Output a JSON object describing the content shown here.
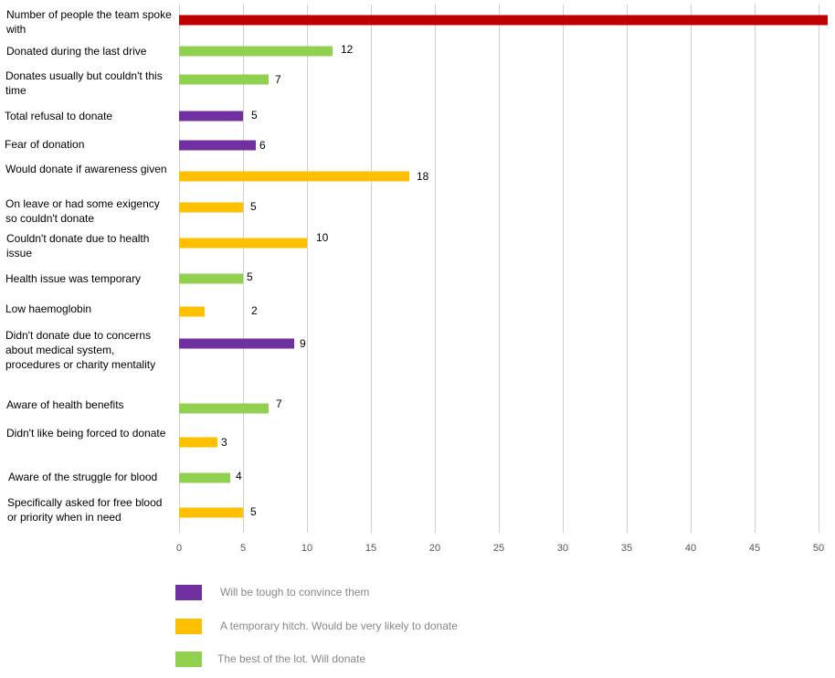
{
  "chart_data": {
    "type": "bar",
    "orientation": "horizontal",
    "title": "",
    "xlabel": "",
    "ylabel": "",
    "xlim": [
      0,
      51
    ],
    "x_ticks": [
      0,
      5,
      10,
      15,
      20,
      25,
      30,
      35,
      40,
      45,
      50
    ],
    "grid": true,
    "legend_position": "bottom",
    "categories": [
      "Number of people the team spoke with",
      "Donated during the last drive",
      "Donates usually but couldn't this time",
      "Total refusal to donate",
      "Fear of donation",
      "Would donate if awareness given",
      "On leave or had some exigency so couldn't donate",
      "Couldn't donate due to health issue",
      "Health issue was temporary",
      "Low haemoglobin",
      "Didn't donate due to concerns about medical system, procedures or charity mentality",
      "Aware of health benefits",
      "Didn't like being forced to donate",
      "Aware of the struggle for blood",
      "Specifically asked for free blood or priority when in need"
    ],
    "values": [
      51,
      12,
      7,
      5,
      6,
      18,
      5,
      10,
      5,
      2,
      9,
      7,
      3,
      4,
      5
    ],
    "value_labels": [
      "",
      "12",
      "7",
      "5",
      "6",
      "18",
      "5",
      "10",
      "5",
      "2",
      "9",
      "7",
      "3",
      "4",
      "5"
    ],
    "groups": [
      "total",
      "green",
      "green",
      "purple",
      "purple",
      "orange",
      "orange",
      "orange",
      "green",
      "orange",
      "purple",
      "green",
      "orange",
      "green",
      "orange"
    ],
    "colors": {
      "total": "#c00000",
      "purple": "#7030a0",
      "orange": "#ffc000",
      "green": "#92d050",
      "grid": "#d0d0d0",
      "tick_text": "#555555"
    },
    "legend": [
      {
        "group": "purple",
        "label": "Will be tough to convince them"
      },
      {
        "group": "orange",
        "label": "A temporary hitch. Would be very likely to donate"
      },
      {
        "group": "green",
        "label": "The best of the lot. Will donate"
      }
    ]
  }
}
